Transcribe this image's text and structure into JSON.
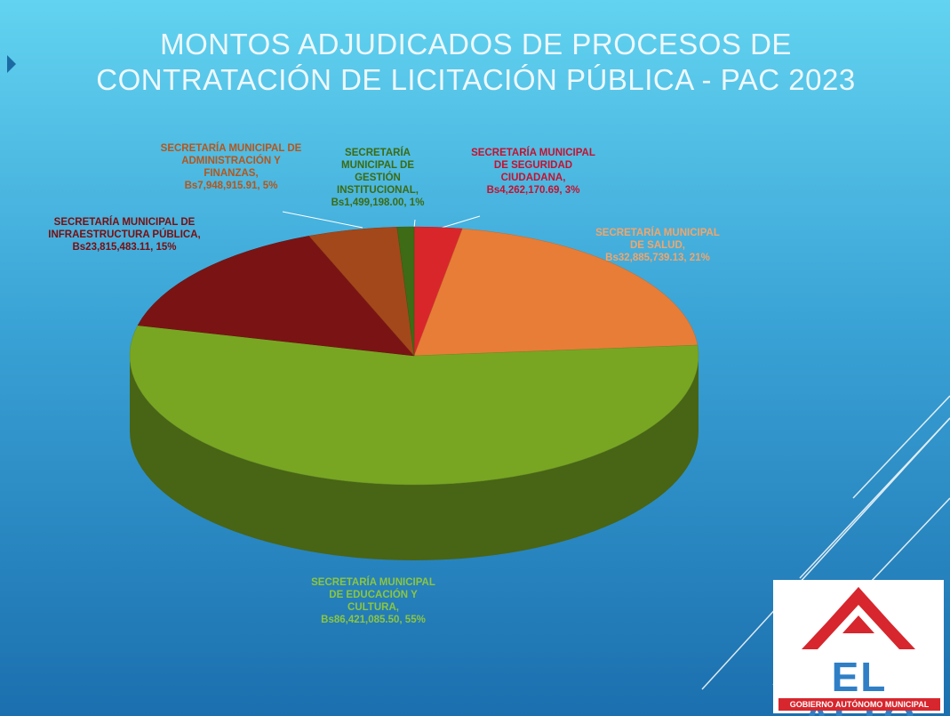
{
  "chart_data": {
    "type": "pie",
    "title": "MONTOS ADJUDICADOS DE PROCESOS DE CONTRATACIÓN DE LICITACIÓN PÚBLICA - PAC 2023",
    "categories": [
      "SECRETARÍA MUNICIPAL DE SEGURIDAD CIUDADANA,",
      "SECRETARÍA MUNICIPAL DE SALUD,",
      "SECRETARÍA MUNICIPAL DE EDUCACIÓN Y CULTURA,",
      "SECRETARÍA MUNICIPAL DE INFRAESTRUCTURA PÚBLICA,",
      "SECRETARÍA MUNICIPAL DE ADMINISTRACIÓN Y FINANZAS,",
      "SECRETARÍA MUNICIPAL DE GESTIÓN INSTITUCIONAL,"
    ],
    "values": [
      4262170.69,
      32885739.13,
      86421085.5,
      23815483.11,
      7948915.91,
      1499198.0
    ],
    "value_labels": [
      "Bs4,262,170.69, 3%",
      "Bs32,885,739.13, 21%",
      "Bs86,421,085.50, 55%",
      "Bs23,815,483.11, 15%",
      "Bs7,948,915.91, 5%",
      "Bs1,499,198.00, 1%"
    ],
    "colors": [
      "#d9262b",
      "#e87d37",
      "#78a623",
      "#7a1414",
      "#a3481a",
      "#3e6b15"
    ],
    "label_colors": [
      "#c8102e",
      "#f2a56a",
      "#8cc63f",
      "#7a0e0e",
      "#b5561b",
      "#3d6b10"
    ]
  },
  "logo": {
    "name": "EL ALTO",
    "subtitle": "GOBIERNO AUTÓNOMO MUNICIPAL"
  }
}
